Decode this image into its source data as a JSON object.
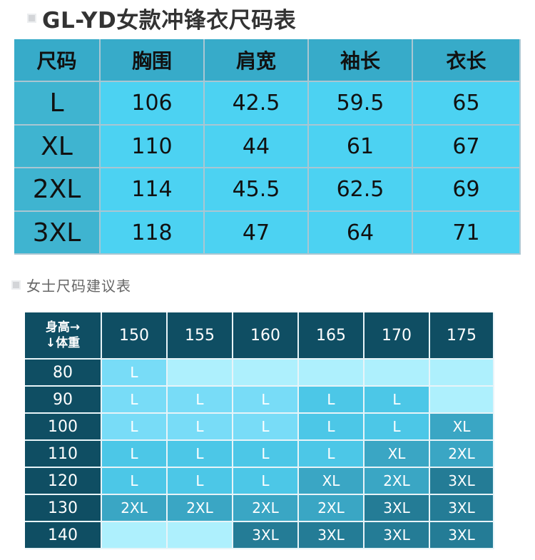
{
  "title": "GL-YD女款冲锋衣尺码表",
  "size_chart": {
    "headers": [
      "尺码",
      "胸围",
      "肩宽",
      "袖长",
      "衣长"
    ],
    "rows": [
      [
        "L",
        "106",
        "42.5",
        "59.5",
        "65"
      ],
      [
        "XL",
        "110",
        "44",
        "61",
        "67"
      ],
      [
        "2XL",
        "114",
        "45.5",
        "62.5",
        "69"
      ],
      [
        "3XL",
        "118",
        "47",
        "64",
        "71"
      ]
    ]
  },
  "subtitle": "女士尺码建议表",
  "recommend": {
    "corner_top": "身高→",
    "corner_bottom": "↓体重",
    "heights": [
      "150",
      "155",
      "160",
      "165",
      "170",
      "175"
    ],
    "weights": [
      "80",
      "90",
      "100",
      "110",
      "120",
      "130",
      "140"
    ],
    "grid": [
      [
        "L",
        "",
        "",
        "",
        "",
        ""
      ],
      [
        "L",
        "L",
        "L",
        "L",
        "L",
        ""
      ],
      [
        "L",
        "L",
        "L",
        "L",
        "L",
        "XL"
      ],
      [
        "L",
        "L",
        "L",
        "L",
        "XL",
        "2XL"
      ],
      [
        "L",
        "L",
        "L",
        "XL",
        "2XL",
        "3XL"
      ],
      [
        "2XL",
        "2XL",
        "2XL",
        "2XL",
        "3XL",
        "3XL"
      ],
      [
        "",
        "",
        "3XL",
        "3XL",
        "3XL",
        "3XL"
      ]
    ],
    "shades": [
      [
        "c1",
        "ce",
        "ce",
        "ce",
        "ce",
        "ce"
      ],
      [
        "c1",
        "c1",
        "c1",
        "c2",
        "c2",
        "ce"
      ],
      [
        "c1",
        "c1",
        "c1",
        "c2",
        "c2",
        "c3"
      ],
      [
        "c2",
        "c2",
        "c2",
        "c2",
        "c3",
        "c3"
      ],
      [
        "c2",
        "c2",
        "c2",
        "c3",
        "c3",
        "c4"
      ],
      [
        "c3",
        "c3",
        "c3",
        "c3",
        "c4",
        "c4"
      ],
      [
        "ce",
        "ce",
        "c4",
        "c4",
        "c4",
        "c4"
      ]
    ],
    "colors": {
      "c1": "#78dcf7",
      "c2": "#4cc7e7",
      "c3": "#3aa6c4",
      "c4": "#247c96",
      "ce": "#aef0fd",
      "header": "#0f4e63"
    }
  }
}
